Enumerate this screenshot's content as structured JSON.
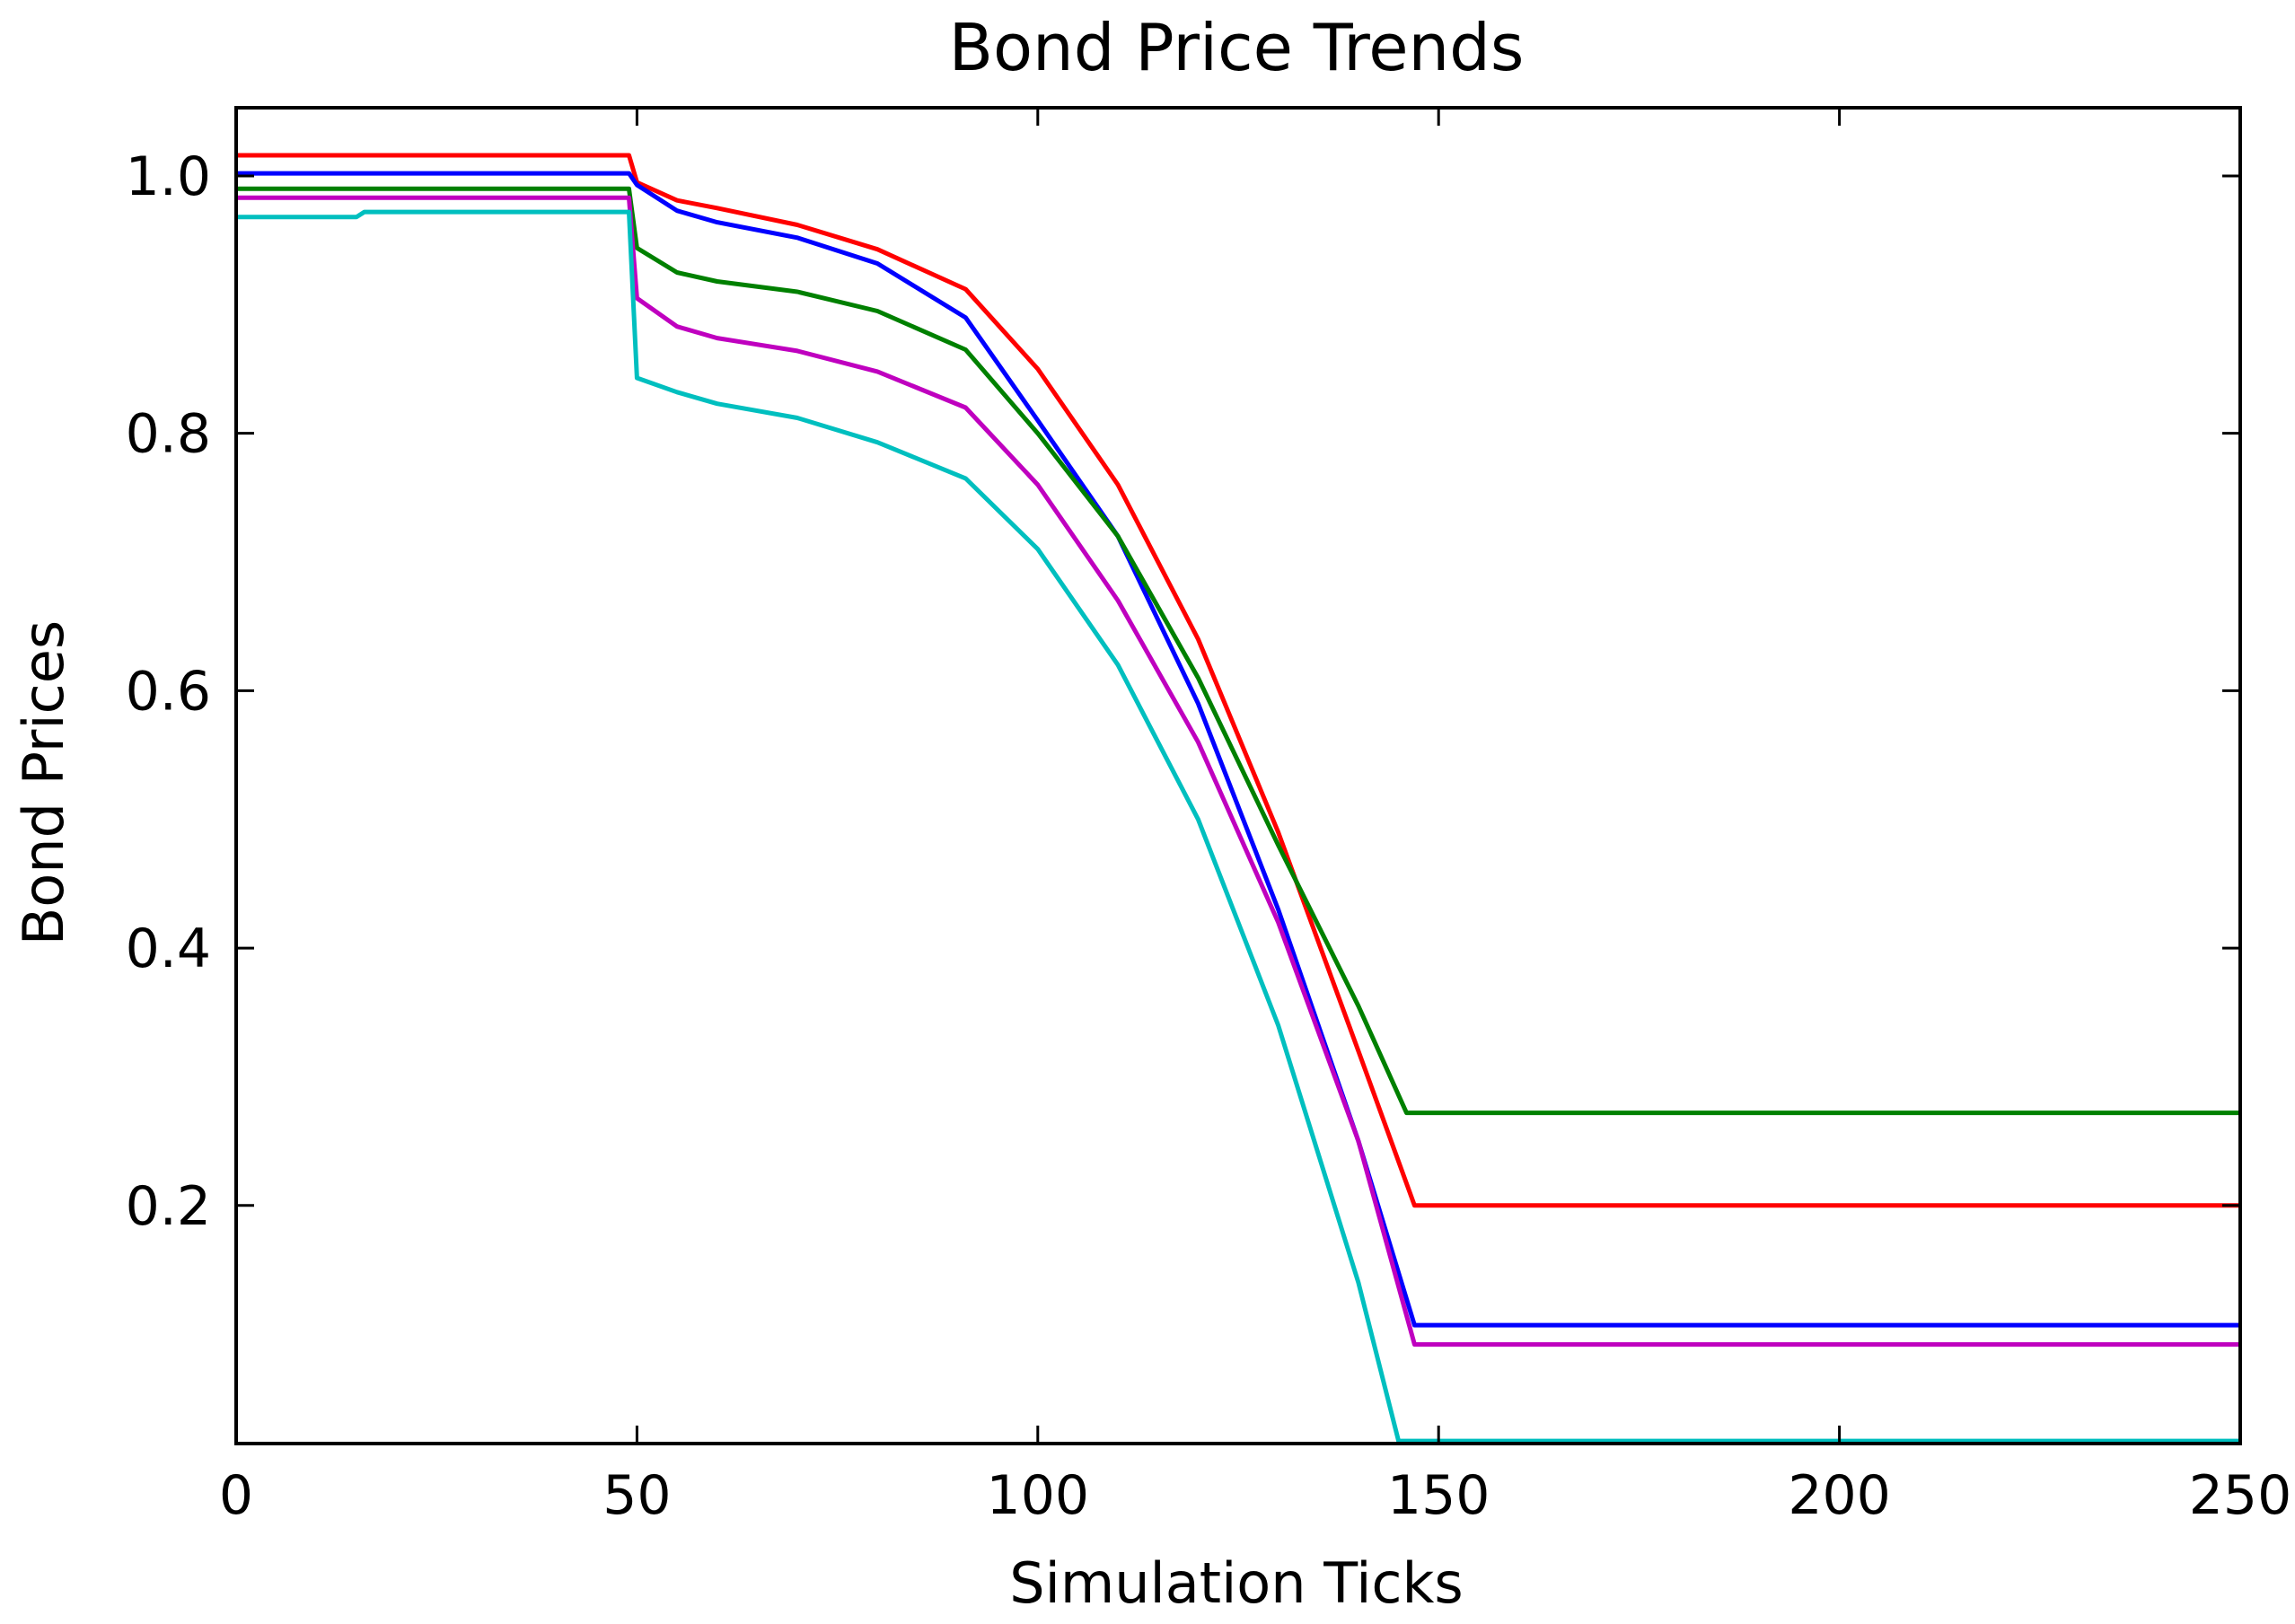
{
  "chart_data": {
    "type": "line",
    "title": "Bond Price Trends",
    "xlabel": "Simulation Ticks",
    "ylabel": "Bond Prices",
    "xlim": [
      0,
      250
    ],
    "ylim": [
      0.015,
      1.053
    ],
    "xticks": [
      0,
      50,
      100,
      150,
      200,
      250
    ],
    "xtick_labels": [
      "0",
      "50",
      "100",
      "150",
      "200",
      "250"
    ],
    "yticks": [
      0.2,
      0.4,
      0.6,
      0.8,
      1.0
    ],
    "ytick_labels": [
      "0.2",
      "0.4",
      "0.6",
      "0.8",
      "1.0"
    ],
    "grid": false,
    "legend": false,
    "series": [
      {
        "color": "#ff0000",
        "x": [
          0,
          49,
          50,
          55,
          60,
          70,
          80,
          91,
          100,
          110,
          120,
          130,
          140,
          147,
          250
        ],
        "y": [
          1.016,
          1.016,
          0.995,
          0.981,
          0.975,
          0.962,
          0.943,
          0.912,
          0.85,
          0.76,
          0.64,
          0.49,
          0.32,
          0.2,
          0.2
        ]
      },
      {
        "color": "#0000ff",
        "x": [
          0,
          49,
          50,
          55,
          60,
          70,
          80,
          91,
          100,
          110,
          120,
          130,
          140,
          147,
          250
        ],
        "y": [
          1.002,
          1.002,
          0.993,
          0.973,
          0.964,
          0.952,
          0.932,
          0.89,
          0.81,
          0.72,
          0.59,
          0.43,
          0.25,
          0.107,
          0.107
        ]
      },
      {
        "color": "#008000",
        "x": [
          0,
          49,
          50,
          55,
          60,
          70,
          80,
          91,
          100,
          110,
          120,
          130,
          140,
          146,
          250
        ],
        "y": [
          0.99,
          0.99,
          0.944,
          0.925,
          0.918,
          0.91,
          0.895,
          0.865,
          0.8,
          0.72,
          0.61,
          0.48,
          0.355,
          0.272,
          0.272
        ]
      },
      {
        "color": "#bf00bf",
        "x": [
          0,
          49,
          50,
          55,
          60,
          70,
          80,
          91,
          100,
          110,
          120,
          130,
          140,
          147,
          250
        ],
        "y": [
          0.983,
          0.983,
          0.905,
          0.883,
          0.874,
          0.864,
          0.848,
          0.82,
          0.76,
          0.67,
          0.56,
          0.42,
          0.25,
          0.092,
          0.092
        ]
      },
      {
        "color": "#00bfbf",
        "x": [
          0,
          15,
          16,
          49,
          50,
          55,
          60,
          70,
          80,
          91,
          100,
          110,
          120,
          130,
          140,
          145,
          250
        ],
        "y": [
          0.968,
          0.968,
          0.972,
          0.972,
          0.843,
          0.832,
          0.823,
          0.812,
          0.793,
          0.765,
          0.71,
          0.62,
          0.5,
          0.34,
          0.14,
          0.017,
          0.017
        ]
      }
    ]
  }
}
